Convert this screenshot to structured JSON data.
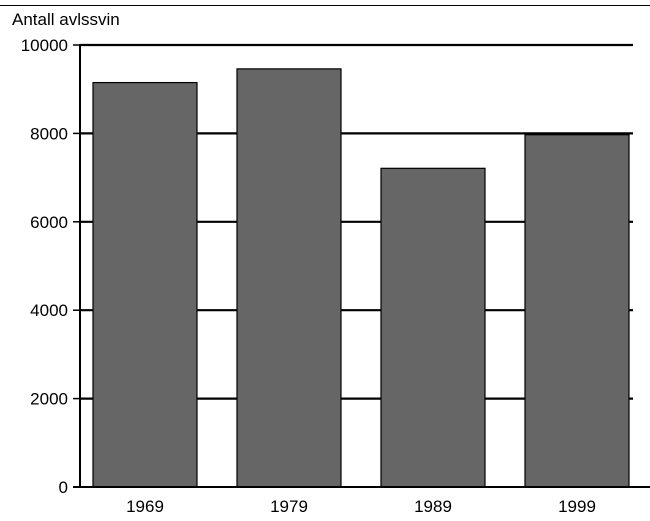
{
  "chart_data": {
    "type": "bar",
    "title": "",
    "xlabel": "",
    "ylabel": "Antall avlssvin",
    "categories": [
      "1969",
      "1979",
      "1989",
      "1999"
    ],
    "values": [
      9150,
      9460,
      7210,
      7970
    ],
    "ylim": [
      0,
      10000
    ],
    "y_ticks": [
      "0",
      "2000",
      "4000",
      "6000",
      "8000",
      "10000"
    ],
    "grid": true,
    "legend": "none",
    "colors": {
      "bar": "#666666",
      "bar_stroke": "#000000",
      "grid": "#000000"
    }
  }
}
